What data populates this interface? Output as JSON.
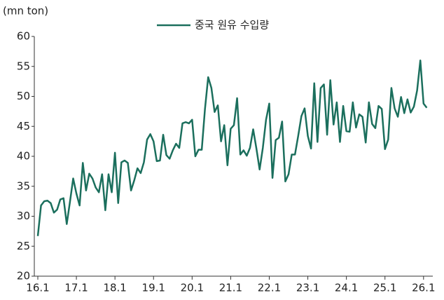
{
  "chart_data": {
    "type": "line",
    "unit_label": "(mn  ton)",
    "categories": [
      "16.1",
      null,
      null,
      null,
      null,
      null,
      null,
      null,
      null,
      null,
      null,
      null,
      "17.1",
      null,
      null,
      null,
      null,
      null,
      null,
      null,
      null,
      null,
      null,
      null,
      "18.1",
      null,
      null,
      null,
      null,
      null,
      null,
      null,
      null,
      null,
      null,
      null,
      "19.1",
      null,
      null,
      null,
      null,
      null,
      null,
      null,
      null,
      null,
      null,
      null,
      "20.1",
      null,
      null,
      null,
      null,
      null,
      null,
      null,
      null,
      null,
      null,
      null,
      "21.1",
      null,
      null,
      null,
      null,
      null,
      null,
      null,
      null,
      null,
      null,
      null,
      "22.1",
      null,
      null,
      null,
      null,
      null,
      null,
      null,
      null,
      null,
      null,
      null,
      "23.1",
      null,
      null,
      null,
      null,
      null,
      null,
      null,
      null,
      null,
      null,
      null,
      "24.1",
      null,
      null,
      null,
      null,
      null,
      null,
      null,
      null,
      null,
      null,
      null,
      "25.1",
      null,
      null,
      null,
      null,
      null,
      null,
      null,
      null,
      null,
      null,
      null,
      "26.1",
      null
    ],
    "series": [
      {
        "name": "중국 원유 수입량",
        "color": "#1b6f5d",
        "values": [
          26.7,
          31.8,
          32.5,
          32.6,
          32.2,
          30.6,
          31.1,
          32.8,
          33.0,
          28.7,
          32.4,
          36.3,
          33.8,
          31.8,
          38.9,
          34.3,
          37.1,
          36.3,
          34.8,
          34.0,
          37.0,
          31.0,
          37.0,
          34.0,
          40.6,
          32.2,
          39.0,
          39.3,
          38.9,
          34.3,
          36.0,
          38.0,
          37.2,
          39.0,
          42.8,
          43.7,
          42.5,
          39.2,
          39.3,
          43.6,
          40.2,
          39.6,
          41.0,
          42.1,
          41.4,
          45.5,
          45.7,
          45.5,
          46.1,
          40.0,
          41.1,
          41.1,
          47.9,
          53.2,
          51.4,
          47.4,
          48.5,
          42.5,
          45.2,
          38.5,
          44.6,
          45.2,
          49.7,
          40.3,
          41.0,
          40.1,
          41.4,
          44.5,
          41.3,
          37.8,
          41.4,
          46.1,
          48.8,
          36.4,
          42.7,
          43.1,
          45.8,
          35.8,
          37.0,
          40.3,
          40.3,
          43.4,
          46.7,
          48.0,
          43.4,
          41.3,
          52.2,
          42.4,
          51.4,
          52.0,
          43.6,
          52.7,
          45.3,
          49.0,
          42.4,
          48.4,
          44.2,
          44.1,
          49.0,
          44.8,
          47.0,
          46.6,
          42.3,
          49.0,
          45.4,
          44.7,
          48.4,
          47.9,
          41.2,
          42.8,
          51.4,
          48.0,
          46.6,
          49.9,
          47.2,
          49.5,
          47.3,
          48.3,
          51.0,
          56.0,
          48.8,
          48.1
        ]
      }
    ],
    "ylim": [
      20,
      60
    ],
    "yticks": [
      20,
      25,
      30,
      35,
      40,
      45,
      50,
      55,
      60
    ],
    "grid": false
  }
}
